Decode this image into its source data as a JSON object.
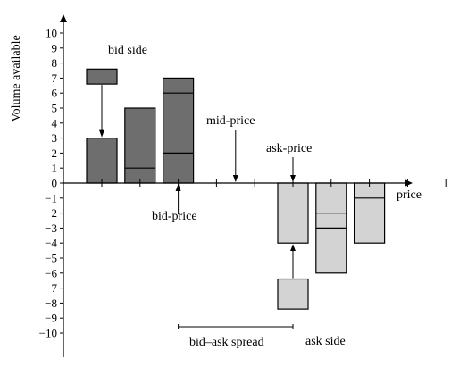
{
  "chart_data": {
    "type": "bar",
    "ylabel": "Volume available",
    "xlabel": "price",
    "ylim": [
      -10,
      10
    ],
    "yticks": [
      10,
      9,
      8,
      7,
      6,
      5,
      4,
      3,
      2,
      1,
      0,
      -1,
      -2,
      -3,
      -4,
      -5,
      -6,
      -7,
      -8,
      -9,
      -10
    ],
    "xtick_count": 11,
    "bid_bars": [
      {
        "level": 1,
        "total": 3,
        "breaks": []
      },
      {
        "level": 2,
        "total": 5,
        "breaks": [
          1
        ]
      },
      {
        "level": 3,
        "total": 7,
        "breaks": [
          2,
          6
        ]
      }
    ],
    "ask_bars": [
      {
        "level": 6,
        "total": -4,
        "breaks": []
      },
      {
        "level": 7,
        "total": -6,
        "breaks": [
          -2,
          -3
        ]
      },
      {
        "level": 8,
        "total": -4,
        "breaks": [
          -1
        ]
      }
    ],
    "incoming_orders": [
      {
        "side": "bid",
        "level": 1,
        "from": 6.6,
        "to": 7.6
      },
      {
        "side": "ask",
        "level": 6,
        "from": -8.4,
        "to": -6.4
      }
    ],
    "colors": {
      "bid": "#6e6e6e",
      "ask": "#d3d3d3",
      "axis": "#000000"
    },
    "annotations": {
      "bid_side": "bid side",
      "mid_price": "mid-price",
      "ask_price": "ask-price",
      "bid_price": "bid-price",
      "spread": "bid–ask spread",
      "ask_side": "ask side"
    }
  }
}
